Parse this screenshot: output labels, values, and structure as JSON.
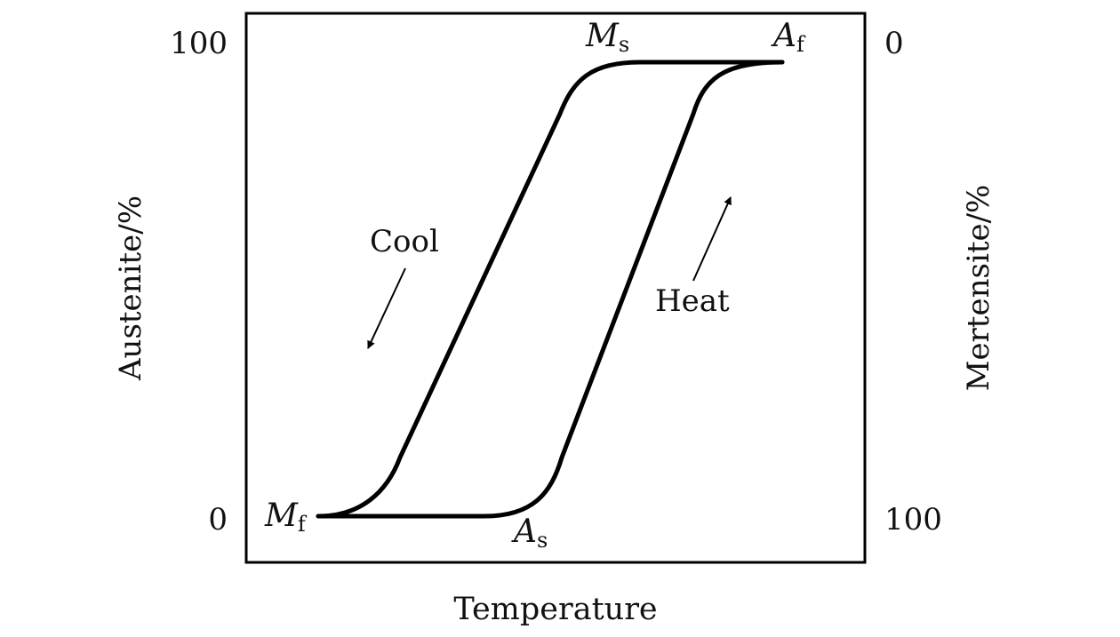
{
  "axes": {
    "x_label": "Temperature",
    "y_left_label": "Austenite/%",
    "y_right_label": "Mertensite/%",
    "left_ticks": {
      "top": "100",
      "bottom": "0"
    },
    "right_ticks": {
      "top": "0",
      "bottom": "100"
    }
  },
  "points": {
    "ms": {
      "base": "M",
      "sub": "s"
    },
    "af": {
      "base": "A",
      "sub": "f"
    },
    "mf": {
      "base": "M",
      "sub": "f"
    },
    "as": {
      "base": "A",
      "sub": "s"
    }
  },
  "arrows": {
    "cool": "Cool",
    "heat": "Heat"
  },
  "colors": {
    "stroke": "#000000",
    "text": "#111111",
    "background": "#ffffff"
  }
}
